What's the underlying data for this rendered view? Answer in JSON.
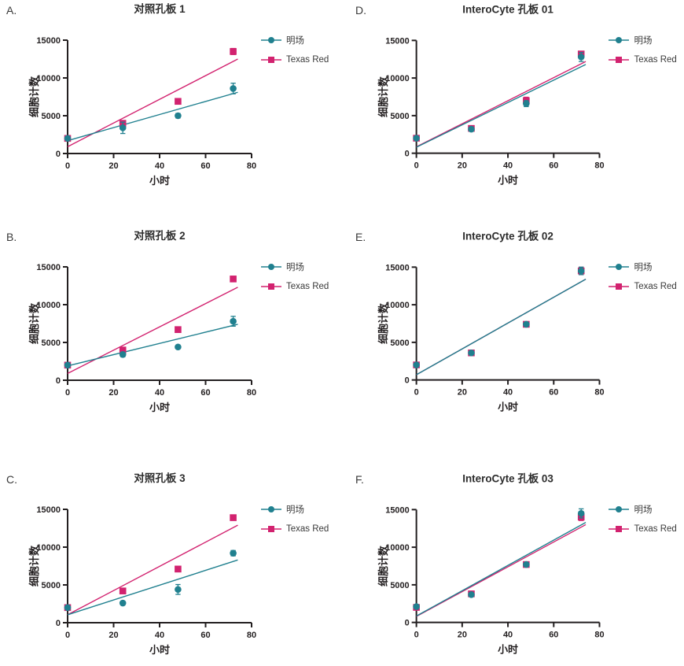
{
  "figure": {
    "background": "#ffffff",
    "text_color": "#3a3a3a",
    "axis_color": "#231f20",
    "title_color": "#2d2d2d",
    "series_colors": {
      "brightfield": "#20808f",
      "texas_red": "#d2226f"
    }
  },
  "chart_data": [
    {
      "letter": "A.",
      "title": "对照孔板 1",
      "type": "scatter",
      "xlabel": "小时",
      "ylabel": "细胞计数",
      "xlim": [
        0,
        80
      ],
      "ylim": [
        0,
        15000
      ],
      "xticks": [
        "0",
        "20",
        "40",
        "60",
        "80"
      ],
      "yticks": [
        "0",
        "5000",
        "10000",
        "15000"
      ],
      "x": [
        0,
        24,
        48,
        72
      ],
      "legend_position": "right",
      "series": [
        {
          "name": "明场",
          "marker": "circle",
          "color": "#20808f",
          "values": [
            2000,
            3400,
            5000,
            8600
          ],
          "errors": [
            150,
            750,
            300,
            700
          ],
          "trend": {
            "x": [
              0,
              74
            ],
            "y": [
              1700,
              8100
            ]
          }
        },
        {
          "name": "Texas Red",
          "marker": "square",
          "color": "#d2226f",
          "values": [
            2000,
            4000,
            6900,
            13500
          ],
          "errors": [
            100,
            150,
            150,
            400
          ],
          "trend": {
            "x": [
              0,
              74
            ],
            "y": [
              900,
              12500
            ]
          }
        }
      ]
    },
    {
      "letter": "D.",
      "title": "InteroCyte 孔板 01",
      "type": "scatter",
      "xlabel": "小时",
      "ylabel": "细胞计数",
      "xlim": [
        0,
        80
      ],
      "ylim": [
        0,
        15000
      ],
      "xticks": [
        "0",
        "20",
        "40",
        "60",
        "80"
      ],
      "yticks": [
        "0",
        "5000",
        "10000",
        "15000"
      ],
      "x": [
        0,
        24,
        48,
        72
      ],
      "legend_position": "right",
      "series": [
        {
          "name": "明场",
          "marker": "circle",
          "color": "#20808f",
          "values": [
            2000,
            3200,
            6600,
            12800
          ],
          "errors": [
            100,
            200,
            400,
            600
          ],
          "trend": {
            "x": [
              0,
              74
            ],
            "y": [
              800,
              11800
            ]
          }
        },
        {
          "name": "Texas Red",
          "marker": "square",
          "color": "#d2226f",
          "values": [
            2000,
            3300,
            7000,
            13200
          ],
          "errors": [
            100,
            150,
            450,
            300
          ],
          "trend": {
            "x": [
              0,
              74
            ],
            "y": [
              850,
              12200
            ]
          }
        }
      ]
    },
    {
      "letter": "B.",
      "title": "对照孔板 2",
      "type": "scatter",
      "xlabel": "小时",
      "ylabel": "细胞计数",
      "xlim": [
        0,
        80
      ],
      "ylim": [
        0,
        15000
      ],
      "xticks": [
        "0",
        "20",
        "40",
        "60",
        "80"
      ],
      "yticks": [
        "0",
        "5000",
        "10000",
        "15000"
      ],
      "x": [
        0,
        24,
        48,
        72
      ],
      "legend_position": "right",
      "series": [
        {
          "name": "明场",
          "marker": "circle",
          "color": "#20808f",
          "values": [
            2000,
            3400,
            4400,
            7800
          ],
          "errors": [
            150,
            300,
            150,
            650
          ],
          "trend": {
            "x": [
              0,
              74
            ],
            "y": [
              1900,
              7400
            ]
          }
        },
        {
          "name": "Texas Red",
          "marker": "square",
          "color": "#d2226f",
          "values": [
            2000,
            4000,
            6700,
            13400
          ],
          "errors": [
            100,
            150,
            150,
            350
          ],
          "trend": {
            "x": [
              0,
              74
            ],
            "y": [
              900,
              12300
            ]
          }
        }
      ]
    },
    {
      "letter": "E.",
      "title": "InteroCyte 孔板 02",
      "type": "scatter",
      "xlabel": "小时",
      "ylabel": "细胞计数",
      "xlim": [
        0,
        80
      ],
      "ylim": [
        0,
        15000
      ],
      "xticks": [
        "0",
        "20",
        "40",
        "60",
        "80"
      ],
      "yticks": [
        "0",
        "5000",
        "10000",
        "15000"
      ],
      "x": [
        0,
        24,
        48,
        72
      ],
      "legend_position": "right",
      "series": [
        {
          "name": "明场",
          "marker": "circle",
          "color": "#20808f",
          "values": [
            2000,
            3600,
            7400,
            14500
          ],
          "errors": [
            100,
            100,
            150,
            500
          ],
          "trend": {
            "x": [
              0,
              74
            ],
            "y": [
              700,
              13400
            ]
          }
        },
        {
          "name": "Texas Red",
          "marker": "square",
          "color": "#d2226f",
          "values": [
            2000,
            3600,
            7400,
            14500
          ],
          "errors": [
            100,
            100,
            150,
            500
          ],
          "trend": {
            "x": [
              0,
              74
            ],
            "y": [
              700,
              13400
            ]
          }
        }
      ]
    },
    {
      "letter": "C.",
      "title": "对照孔板 3",
      "type": "scatter",
      "xlabel": "小时",
      "ylabel": "细胞计数",
      "xlim": [
        0,
        80
      ],
      "ylim": [
        0,
        15000
      ],
      "xticks": [
        "0",
        "20",
        "40",
        "60",
        "80"
      ],
      "yticks": [
        "0",
        "5000",
        "10000",
        "15000"
      ],
      "x": [
        0,
        24,
        48,
        72
      ],
      "legend_position": "right",
      "series": [
        {
          "name": "明场",
          "marker": "circle",
          "color": "#20808f",
          "values": [
            2000,
            2600,
            4400,
            9200
          ],
          "errors": [
            150,
            150,
            650,
            350
          ],
          "trend": {
            "x": [
              0,
              74
            ],
            "y": [
              1050,
              8300
            ]
          }
        },
        {
          "name": "Texas Red",
          "marker": "square",
          "color": "#d2226f",
          "values": [
            2000,
            4200,
            7100,
            13900
          ],
          "errors": [
            100,
            100,
            150,
            150
          ],
          "trend": {
            "x": [
              0,
              74
            ],
            "y": [
              1050,
              12900
            ]
          }
        }
      ]
    },
    {
      "letter": "F.",
      "title": "InteroCyte 孔板 03",
      "type": "scatter",
      "xlabel": "小时",
      "ylabel": "细胞计数",
      "xlim": [
        0,
        80
      ],
      "ylim": [
        0,
        15000
      ],
      "xticks": [
        "0",
        "20",
        "40",
        "60",
        "80"
      ],
      "yticks": [
        "0",
        "5000",
        "10000",
        "15000"
      ],
      "x": [
        0,
        24,
        48,
        72
      ],
      "legend_position": "right",
      "series": [
        {
          "name": "明场",
          "marker": "circle",
          "color": "#20808f",
          "values": [
            2100,
            3700,
            7700,
            14500
          ],
          "errors": [
            100,
            100,
            150,
            600
          ],
          "trend": {
            "x": [
              0,
              74
            ],
            "y": [
              850,
              13300
            ]
          }
        },
        {
          "name": "Texas Red",
          "marker": "square",
          "color": "#d2226f",
          "values": [
            2000,
            3800,
            7700,
            14000
          ],
          "errors": [
            100,
            100,
            150,
            450
          ],
          "trend": {
            "x": [
              0,
              74
            ],
            "y": [
              800,
              13000
            ]
          }
        }
      ]
    }
  ]
}
